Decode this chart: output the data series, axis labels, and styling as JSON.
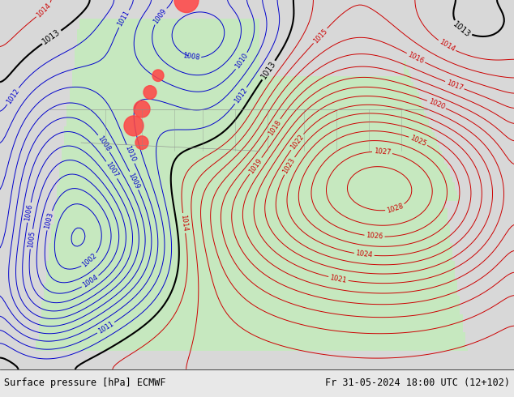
{
  "title_left": "Surface pressure [hPa] ECMWF",
  "title_right": "Fr 31-05-2024 18:00 UTC (12+102)",
  "bottom_bar_color": "#e8e8e8",
  "label_fontsize": 9,
  "contour_interval": 1,
  "pressure_min": 998,
  "pressure_max": 1030,
  "background_land_color": "#c8e6c0",
  "background_ocean_color": "#e0e0e0",
  "contour_color_blue": "#0000cc",
  "contour_color_red": "#cc0000",
  "contour_color_black": "#000000",
  "highlight_color": "#ff4444"
}
